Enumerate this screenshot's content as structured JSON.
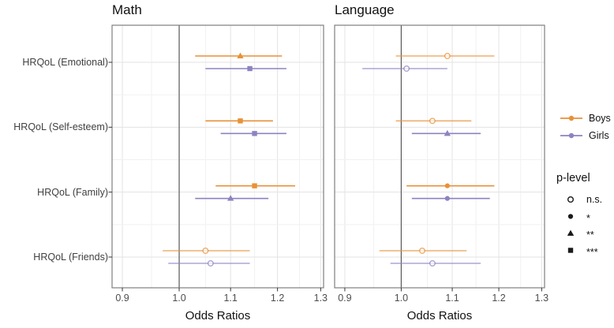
{
  "chart_data": {
    "type": "forest",
    "x_scale": "log",
    "title": "",
    "xlabel": "Odds Ratios",
    "x_ticks": [
      0.9,
      1.0,
      1.1,
      1.2,
      1.3
    ],
    "x_minor_ticks": [
      0.95,
      1.05,
      1.15,
      1.25
    ],
    "xlim": [
      0.883,
      1.307
    ],
    "reference_line": 1.0,
    "grid": true,
    "legend_position": "right",
    "categories": [
      "HRQoL (Emotional)",
      "HRQoL (Self-esteem)",
      "HRQoL (Family)",
      "HRQoL (Friends)"
    ],
    "panels": [
      {
        "title": "Math",
        "rows": [
          {
            "category": "HRQoL (Emotional)",
            "points": [
              {
                "group": "Boys",
                "or": 1.12,
                "ci_low": 1.03,
                "ci_high": 1.21,
                "p_level": "**"
              },
              {
                "group": "Girls",
                "or": 1.14,
                "ci_low": 1.05,
                "ci_high": 1.22,
                "p_level": "***"
              }
            ]
          },
          {
            "category": "HRQoL (Self-esteem)",
            "points": [
              {
                "group": "Boys",
                "or": 1.12,
                "ci_low": 1.05,
                "ci_high": 1.19,
                "p_level": "***"
              },
              {
                "group": "Girls",
                "or": 1.15,
                "ci_low": 1.08,
                "ci_high": 1.22,
                "p_level": "***"
              }
            ]
          },
          {
            "category": "HRQoL (Family)",
            "points": [
              {
                "group": "Boys",
                "or": 1.15,
                "ci_low": 1.07,
                "ci_high": 1.24,
                "p_level": "***"
              },
              {
                "group": "Girls",
                "or": 1.1,
                "ci_low": 1.03,
                "ci_high": 1.18,
                "p_level": "**"
              }
            ]
          },
          {
            "category": "HRQoL (Friends)",
            "points": [
              {
                "group": "Boys",
                "or": 1.05,
                "ci_low": 0.97,
                "ci_high": 1.14,
                "p_level": "n.s."
              },
              {
                "group": "Girls",
                "or": 1.06,
                "ci_low": 0.98,
                "ci_high": 1.14,
                "p_level": "n.s."
              }
            ]
          }
        ]
      },
      {
        "title": "Language",
        "rows": [
          {
            "category": "HRQoL (Emotional)",
            "points": [
              {
                "group": "Boys",
                "or": 1.09,
                "ci_low": 0.99,
                "ci_high": 1.19,
                "p_level": "n.s."
              },
              {
                "group": "Girls",
                "or": 1.01,
                "ci_low": 0.93,
                "ci_high": 1.09,
                "p_level": "n.s."
              }
            ]
          },
          {
            "category": "HRQoL (Self-esteem)",
            "points": [
              {
                "group": "Boys",
                "or": 1.06,
                "ci_low": 0.99,
                "ci_high": 1.14,
                "p_level": "n.s."
              },
              {
                "group": "Girls",
                "or": 1.09,
                "ci_low": 1.02,
                "ci_high": 1.16,
                "p_level": "**"
              }
            ]
          },
          {
            "category": "HRQoL (Family)",
            "points": [
              {
                "group": "Boys",
                "or": 1.09,
                "ci_low": 1.01,
                "ci_high": 1.19,
                "p_level": "*"
              },
              {
                "group": "Girls",
                "or": 1.09,
                "ci_low": 1.02,
                "ci_high": 1.18,
                "p_level": "*"
              }
            ]
          },
          {
            "category": "HRQoL (Friends)",
            "points": [
              {
                "group": "Boys",
                "or": 1.04,
                "ci_low": 0.96,
                "ci_high": 1.13,
                "p_level": "n.s."
              },
              {
                "group": "Girls",
                "or": 1.06,
                "ci_low": 0.98,
                "ci_high": 1.16,
                "p_level": "n.s."
              }
            ]
          }
        ]
      }
    ],
    "legend": {
      "groups": [
        {
          "label": "Boys",
          "color": "#E89138"
        },
        {
          "label": "Girls",
          "color": "#8D83C1"
        }
      ],
      "p_level_title": "p-level",
      "p_levels": [
        {
          "label": "n.s.",
          "shape": "open-circle"
        },
        {
          "label": "*",
          "shape": "filled-circle"
        },
        {
          "label": "**",
          "shape": "filled-triangle"
        },
        {
          "label": "***",
          "shape": "filled-square"
        }
      ]
    },
    "colors": {
      "boys": "#E89138",
      "girls": "#8D83C1",
      "grid_major": "#E3E3E3",
      "grid_minor": "#F1F1F1",
      "panel_border": "#7F7F7F",
      "reference_line": "#595959",
      "tick_text": "#4D4D4D",
      "legend_symbol": "#1A1A1A"
    }
  }
}
